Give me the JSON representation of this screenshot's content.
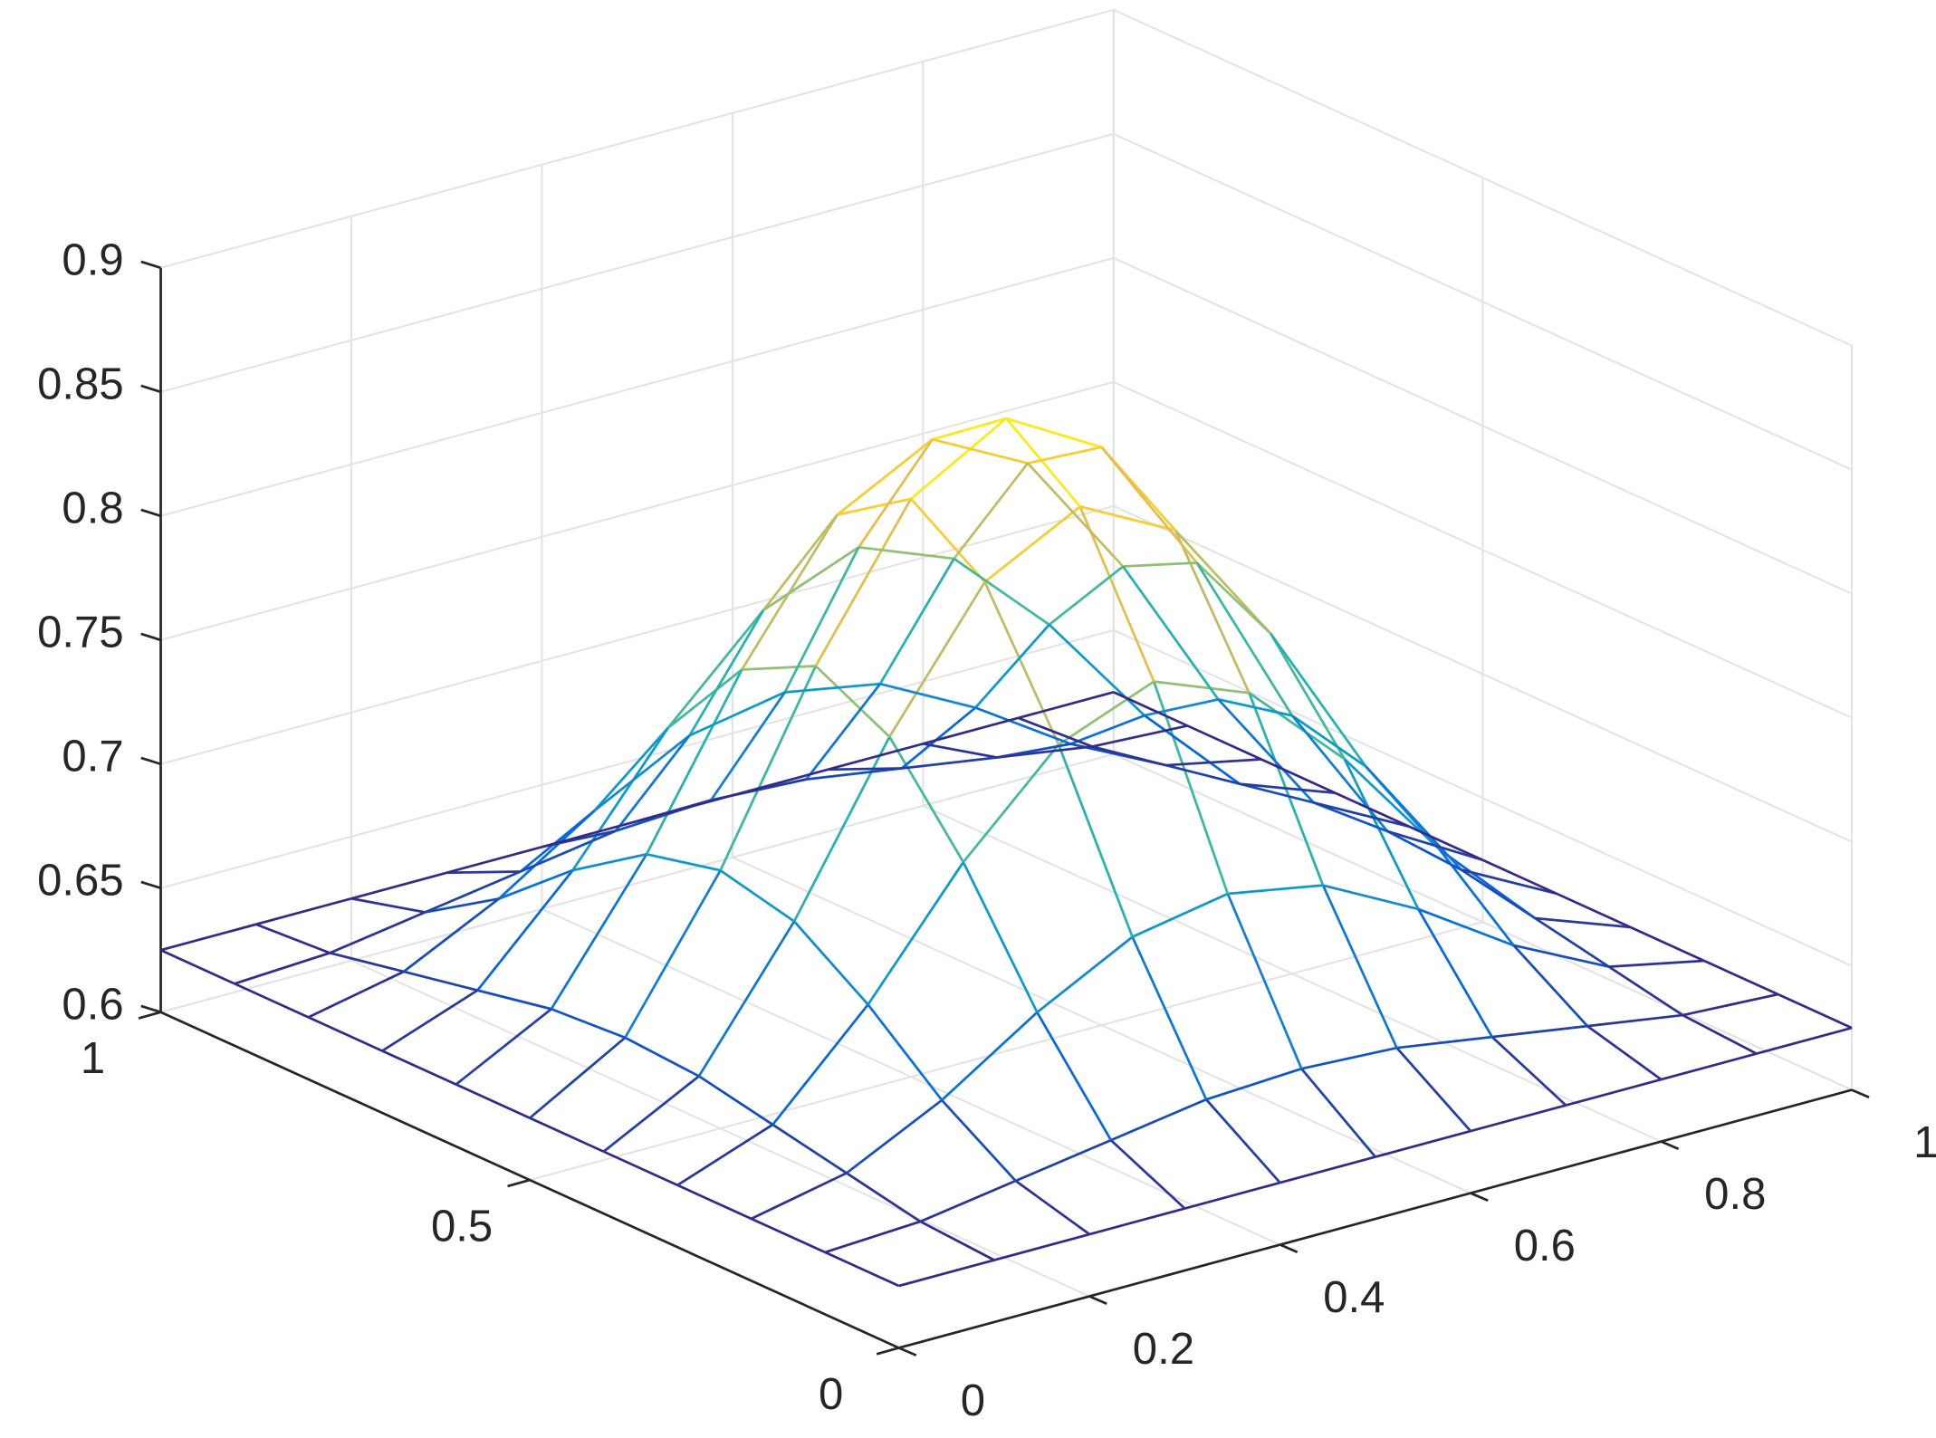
{
  "chart_data": {
    "type": "mesh",
    "x": [
      0,
      0.1,
      0.2,
      0.3,
      0.4,
      0.5,
      0.6,
      0.7,
      0.8,
      0.9,
      1
    ],
    "y": [
      0,
      0.1,
      0.2,
      0.3,
      0.4,
      0.5,
      0.6,
      0.7,
      0.8,
      0.9,
      1
    ],
    "z": [
      [
        0.625,
        0.625,
        0.625,
        0.625,
        0.625,
        0.625,
        0.625,
        0.625,
        0.625,
        0.625,
        0.625
      ],
      [
        0.625,
        0.627,
        0.633,
        0.639,
        0.645,
        0.647,
        0.645,
        0.639,
        0.633,
        0.627,
        0.625
      ],
      [
        0.625,
        0.633,
        0.652,
        0.677,
        0.697,
        0.704,
        0.697,
        0.677,
        0.652,
        0.633,
        0.625
      ],
      [
        0.625,
        0.639,
        0.677,
        0.724,
        0.761,
        0.776,
        0.761,
        0.724,
        0.677,
        0.639,
        0.625
      ],
      [
        0.625,
        0.645,
        0.697,
        0.761,
        0.813,
        0.833,
        0.813,
        0.761,
        0.697,
        0.645,
        0.625
      ],
      [
        0.625,
        0.647,
        0.704,
        0.776,
        0.833,
        0.855,
        0.833,
        0.776,
        0.704,
        0.647,
        0.625
      ],
      [
        0.625,
        0.645,
        0.697,
        0.761,
        0.813,
        0.833,
        0.813,
        0.761,
        0.697,
        0.645,
        0.625
      ],
      [
        0.625,
        0.639,
        0.677,
        0.724,
        0.761,
        0.776,
        0.761,
        0.724,
        0.677,
        0.639,
        0.625
      ],
      [
        0.625,
        0.633,
        0.652,
        0.677,
        0.697,
        0.704,
        0.697,
        0.677,
        0.652,
        0.633,
        0.625
      ],
      [
        0.625,
        0.627,
        0.633,
        0.639,
        0.645,
        0.647,
        0.645,
        0.639,
        0.633,
        0.627,
        0.625
      ],
      [
        0.625,
        0.625,
        0.625,
        0.625,
        0.625,
        0.625,
        0.625,
        0.625,
        0.625,
        0.625,
        0.625
      ]
    ],
    "colormap": [
      "#352a87",
      "#0363e1",
      "#1485d4",
      "#06a7c6",
      "#38b99e",
      "#92bf73",
      "#d9ba56",
      "#fcce2e",
      "#f9fb0e"
    ],
    "xlim": [
      0,
      1
    ],
    "ylim": [
      0,
      1
    ],
    "zlim": [
      0.6,
      0.9
    ],
    "xticks": [
      0,
      0.2,
      0.4,
      0.6,
      0.8,
      1
    ],
    "yticks": [
      0,
      0.5,
      1
    ],
    "zticks": [
      0.6,
      0.65,
      0.7,
      0.75,
      0.8,
      0.85,
      0.9
    ],
    "grid": true
  }
}
